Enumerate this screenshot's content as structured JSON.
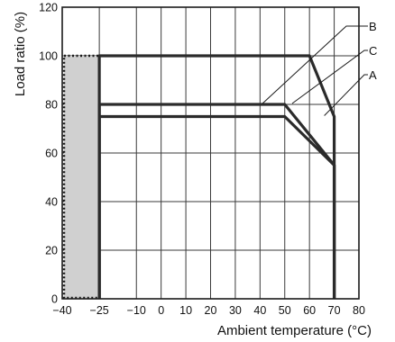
{
  "chart_data": {
    "type": "line",
    "title": "",
    "xlabel": "Ambient temperature (°C)",
    "ylabel": "Load ratio (%)",
    "xlim": [
      -40,
      80
    ],
    "ylim": [
      0,
      120
    ],
    "x_tick_labels": [
      "−40",
      "−25",
      "−10",
      "0",
      "10",
      "20",
      "30",
      "40",
      "50",
      "60",
      "70",
      "80"
    ],
    "y_tick_labels": [
      "0",
      "20",
      "40",
      "60",
      "80",
      "100",
      "120"
    ],
    "grid": true,
    "shaded_region": {
      "x": [
        -40,
        -25
      ],
      "y": [
        0,
        100
      ]
    },
    "series": [
      {
        "name": "B",
        "x": [
          -25,
          -25,
          60,
          70,
          70
        ],
        "y": [
          0,
          100,
          100,
          75,
          0
        ]
      },
      {
        "name": "C",
        "x": [
          -25,
          -25,
          50,
          70,
          70
        ],
        "y": [
          0,
          80,
          80,
          55,
          0
        ]
      },
      {
        "name": "A",
        "x": [
          -25,
          -25,
          50,
          70,
          70
        ],
        "y": [
          0,
          75,
          75,
          55,
          0
        ]
      }
    ]
  },
  "colors": {
    "lines": "#2b2b2b",
    "shade": "#d0d0d0",
    "grid": "#3a3a3a"
  }
}
